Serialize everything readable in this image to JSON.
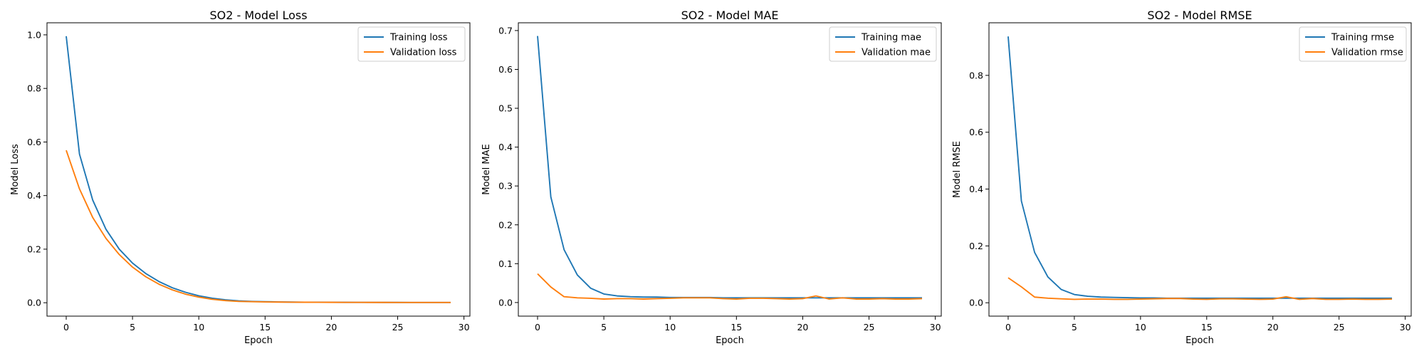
{
  "chart_data": [
    {
      "type": "line",
      "title": "SO2 - Model Loss",
      "xlabel": "Epoch",
      "ylabel": "Model Loss",
      "xlim": [
        -1.45,
        30.45
      ],
      "ylim": [
        -0.05,
        1.045
      ],
      "xticks": [
        0,
        5,
        10,
        15,
        20,
        25,
        30
      ],
      "yticks": [
        0.0,
        0.2,
        0.4,
        0.6,
        0.8,
        1.0
      ],
      "ytick_labels": [
        "0.0",
        "0.2",
        "0.4",
        "0.6",
        "0.8",
        "1.0"
      ],
      "grid": false,
      "legend_position": "top-right",
      "x": [
        0,
        1,
        2,
        3,
        4,
        5,
        6,
        7,
        8,
        9,
        10,
        11,
        12,
        13,
        14,
        15,
        16,
        17,
        18,
        19,
        20,
        21,
        22,
        23,
        24,
        25,
        26,
        27,
        28,
        29
      ],
      "series": [
        {
          "name": "Training loss",
          "color": "#1f77b4",
          "values": [
            0.995,
            0.555,
            0.383,
            0.274,
            0.2,
            0.148,
            0.109,
            0.079,
            0.056,
            0.039,
            0.026,
            0.017,
            0.011,
            0.007,
            0.005,
            0.004,
            0.003,
            0.0025,
            0.002,
            0.0018,
            0.0016,
            0.0015,
            0.0014,
            0.0013,
            0.0012,
            0.0012,
            0.0011,
            0.0011,
            0.0011,
            0.001
          ]
        },
        {
          "name": "Validation loss",
          "color": "#ff7f0e",
          "values": [
            0.569,
            0.425,
            0.318,
            0.24,
            0.18,
            0.133,
            0.097,
            0.069,
            0.048,
            0.032,
            0.021,
            0.013,
            0.008,
            0.005,
            0.004,
            0.003,
            0.0025,
            0.002,
            0.0018,
            0.0016,
            0.0015,
            0.0014,
            0.0013,
            0.0012,
            0.0012,
            0.0011,
            0.0011,
            0.001,
            0.001,
            0.001
          ]
        }
      ]
    },
    {
      "type": "line",
      "title": "SO2 - Model MAE",
      "xlabel": "Epoch",
      "ylabel": "Model MAE",
      "xlim": [
        -1.45,
        30.45
      ],
      "ylim": [
        -0.035,
        0.72
      ],
      "xticks": [
        0,
        5,
        10,
        15,
        20,
        25,
        30
      ],
      "yticks": [
        0.0,
        0.1,
        0.2,
        0.3,
        0.4,
        0.5,
        0.6,
        0.7
      ],
      "ytick_labels": [
        "0.0",
        "0.1",
        "0.2",
        "0.3",
        "0.4",
        "0.5",
        "0.6",
        "0.7"
      ],
      "grid": false,
      "legend_position": "top-right",
      "x": [
        0,
        1,
        2,
        3,
        4,
        5,
        6,
        7,
        8,
        9,
        10,
        11,
        12,
        13,
        14,
        15,
        16,
        17,
        18,
        19,
        20,
        21,
        22,
        23,
        24,
        25,
        26,
        27,
        28,
        29
      ],
      "series": [
        {
          "name": "Training mae",
          "color": "#1f77b4",
          "values": [
            0.686,
            0.272,
            0.136,
            0.071,
            0.037,
            0.022,
            0.017,
            0.015,
            0.014,
            0.014,
            0.013,
            0.013,
            0.013,
            0.013,
            0.012,
            0.012,
            0.012,
            0.012,
            0.012,
            0.012,
            0.012,
            0.012,
            0.012,
            0.012,
            0.012,
            0.012,
            0.012,
            0.012,
            0.012,
            0.012
          ]
        },
        {
          "name": "Validation mae",
          "color": "#ff7f0e",
          "values": [
            0.074,
            0.04,
            0.015,
            0.012,
            0.011,
            0.009,
            0.01,
            0.01,
            0.009,
            0.01,
            0.011,
            0.012,
            0.012,
            0.012,
            0.01,
            0.009,
            0.011,
            0.011,
            0.01,
            0.009,
            0.01,
            0.017,
            0.009,
            0.012,
            0.009,
            0.009,
            0.01,
            0.009,
            0.009,
            0.01
          ]
        }
      ]
    },
    {
      "type": "line",
      "title": "SO2 - Model RMSE",
      "xlabel": "Epoch",
      "ylabel": "Model RMSE",
      "xlim": [
        -1.45,
        30.45
      ],
      "ylim": [
        -0.047,
        0.985
      ],
      "xticks": [
        0,
        5,
        10,
        15,
        20,
        25,
        30
      ],
      "yticks": [
        0.0,
        0.2,
        0.4,
        0.6,
        0.8
      ],
      "ytick_labels": [
        "0.0",
        "0.2",
        "0.4",
        "0.6",
        "0.8"
      ],
      "grid": false,
      "legend_position": "top-right",
      "x": [
        0,
        1,
        2,
        3,
        4,
        5,
        6,
        7,
        8,
        9,
        10,
        11,
        12,
        13,
        14,
        15,
        16,
        17,
        18,
        19,
        20,
        21,
        22,
        23,
        24,
        25,
        26,
        27,
        28,
        29
      ],
      "series": [
        {
          "name": "Training rmse",
          "color": "#1f77b4",
          "values": [
            0.937,
            0.358,
            0.177,
            0.091,
            0.047,
            0.029,
            0.023,
            0.02,
            0.019,
            0.018,
            0.017,
            0.017,
            0.016,
            0.016,
            0.016,
            0.016,
            0.016,
            0.016,
            0.016,
            0.016,
            0.016,
            0.016,
            0.016,
            0.016,
            0.016,
            0.016,
            0.016,
            0.016,
            0.016,
            0.016
          ]
        },
        {
          "name": "Validation rmse",
          "color": "#ff7f0e",
          "values": [
            0.088,
            0.056,
            0.02,
            0.016,
            0.014,
            0.012,
            0.013,
            0.013,
            0.012,
            0.012,
            0.013,
            0.014,
            0.015,
            0.015,
            0.013,
            0.012,
            0.014,
            0.014,
            0.013,
            0.012,
            0.013,
            0.021,
            0.012,
            0.015,
            0.012,
            0.012,
            0.013,
            0.012,
            0.012,
            0.013
          ]
        }
      ]
    }
  ]
}
